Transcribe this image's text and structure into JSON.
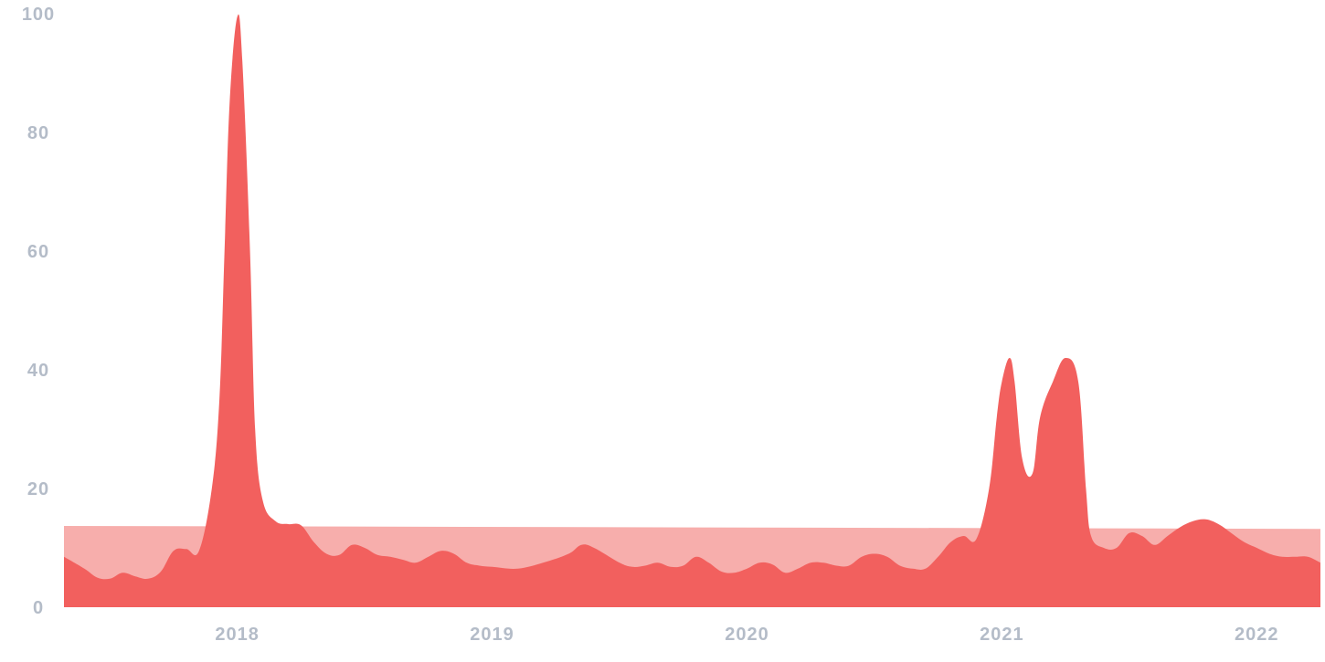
{
  "chart_data": {
    "type": "area",
    "title": "",
    "xlabel": "",
    "ylabel": "",
    "xlim": [
      2017.32,
      2022.25
    ],
    "ylim": [
      0,
      100
    ],
    "x_ticks": [
      {
        "value": 2018,
        "label": "2018"
      },
      {
        "value": 2019,
        "label": "2019"
      },
      {
        "value": 2020,
        "label": "2020"
      },
      {
        "value": 2021,
        "label": "2021"
      },
      {
        "value": 2022,
        "label": "2022"
      }
    ],
    "y_ticks": [
      {
        "value": 0,
        "label": "0"
      },
      {
        "value": 20,
        "label": "20"
      },
      {
        "value": 40,
        "label": "40"
      },
      {
        "value": 60,
        "label": "60"
      },
      {
        "value": 80,
        "label": "80"
      },
      {
        "value": 100,
        "label": "100"
      }
    ],
    "grid": false,
    "colors": {
      "primary": "#f2605e",
      "band": "#f7aeac",
      "tick_text": "#b4bcc8"
    },
    "band": {
      "x": [
        2017.32,
        2022.25
      ],
      "y": [
        13.7,
        13.2
      ]
    },
    "series": [
      {
        "x": [
          2017.32,
          2017.4,
          2017.45,
          2017.5,
          2017.55,
          2017.6,
          2017.65,
          2017.7,
          2017.75,
          2017.8,
          2017.85,
          2017.9,
          2017.93,
          2017.95,
          2017.97,
          2018.0,
          2018.02,
          2018.05,
          2018.07,
          2018.1,
          2018.15,
          2018.2,
          2018.25,
          2018.3,
          2018.35,
          2018.4,
          2018.45,
          2018.5,
          2018.55,
          2018.6,
          2018.65,
          2018.7,
          2018.75,
          2018.8,
          2018.85,
          2018.9,
          2018.95,
          2019.0,
          2019.1,
          2019.2,
          2019.3,
          2019.35,
          2019.4,
          2019.5,
          2019.55,
          2019.6,
          2019.65,
          2019.7,
          2019.75,
          2019.8,
          2019.85,
          2019.9,
          2019.95,
          2020.0,
          2020.05,
          2020.1,
          2020.15,
          2020.2,
          2020.25,
          2020.3,
          2020.35,
          2020.4,
          2020.45,
          2020.5,
          2020.55,
          2020.6,
          2020.65,
          2020.7,
          2020.75,
          2020.8,
          2020.85,
          2020.9,
          2020.95,
          2020.98,
          2021.0,
          2021.03,
          2021.05,
          2021.08,
          2021.12,
          2021.15,
          2021.2,
          2021.25,
          2021.3,
          2021.33,
          2021.35,
          2021.4,
          2021.45,
          2021.5,
          2021.55,
          2021.6,
          2021.65,
          2021.7,
          2021.75,
          2021.8,
          2021.85,
          2021.9,
          2021.95,
          2022.0,
          2022.05,
          2022.1,
          2022.15,
          2022.2,
          2022.25
        ],
        "values": [
          8.5,
          6.5,
          5.0,
          4.8,
          5.8,
          5.2,
          4.8,
          6.0,
          9.5,
          9.8,
          9.5,
          20.0,
          35.0,
          60.0,
          85.0,
          99.5,
          92.0,
          60.0,
          30.0,
          18.0,
          14.5,
          14.0,
          13.8,
          11.0,
          9.0,
          8.8,
          10.5,
          10.0,
          8.8,
          8.5,
          8.0,
          7.5,
          8.5,
          9.5,
          9.0,
          7.5,
          7.0,
          6.8,
          6.5,
          7.5,
          9.0,
          10.5,
          10.0,
          7.5,
          6.8,
          7.0,
          7.5,
          6.8,
          7.0,
          8.5,
          7.5,
          6.0,
          5.8,
          6.5,
          7.5,
          7.2,
          5.8,
          6.5,
          7.5,
          7.5,
          7.0,
          7.0,
          8.5,
          9.0,
          8.5,
          7.0,
          6.5,
          6.5,
          8.5,
          11.0,
          12.0,
          11.5,
          20.0,
          32.0,
          38.0,
          42.0,
          38.0,
          25.0,
          22.5,
          32.0,
          38.0,
          42.0,
          38.0,
          20.0,
          12.0,
          10.0,
          10.0,
          12.5,
          12.0,
          10.5,
          12.0,
          13.5,
          14.5,
          14.8,
          14.0,
          12.5,
          11.0,
          10.0,
          9.0,
          8.5,
          8.5,
          8.5,
          7.5
        ]
      }
    ]
  }
}
